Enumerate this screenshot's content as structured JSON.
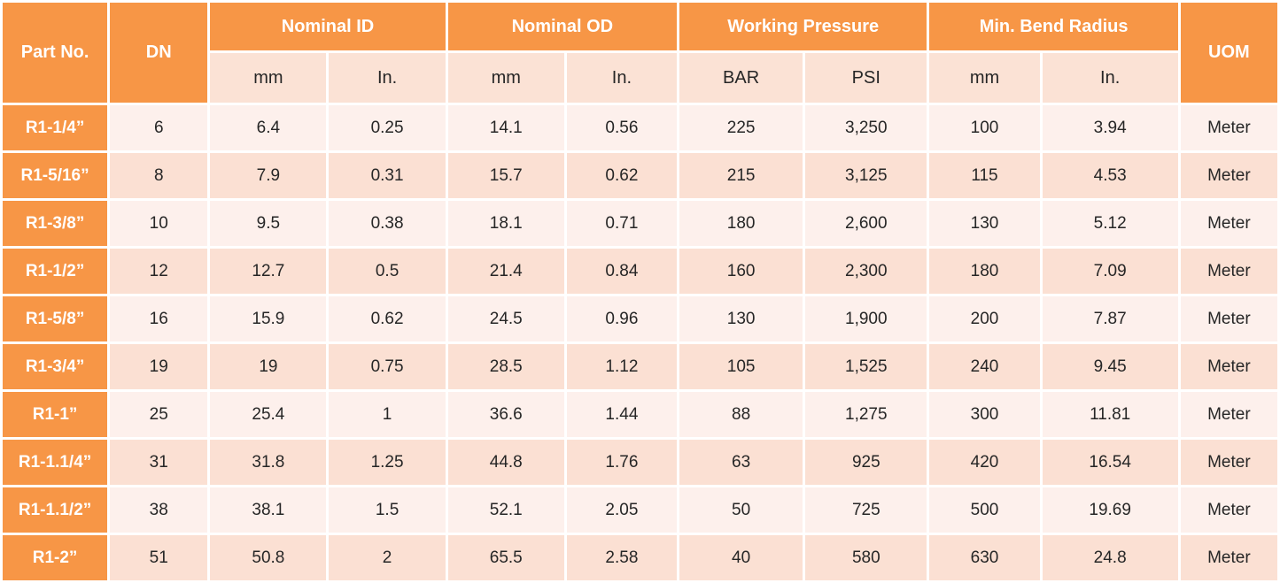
{
  "headers": {
    "part_no": "Part No.",
    "dn": "DN",
    "nominal_id": "Nominal ID",
    "nominal_od": "Nominal OD",
    "working_pressure": "Working Pressure",
    "min_bend_radius": "Min. Bend Radius",
    "uom": "UOM"
  },
  "subheaders": {
    "id_mm": "mm",
    "id_in": "In.",
    "od_mm": "mm",
    "od_in": "In.",
    "wp_bar": "BAR",
    "wp_psi": "PSI",
    "bend_mm": "mm",
    "bend_in": "In."
  },
  "rows": [
    [
      "R1-1/4”",
      "6",
      "6.4",
      "0.25",
      "14.1",
      "0.56",
      "225",
      "3,250",
      "100",
      "3.94",
      "Meter"
    ],
    [
      "R1-5/16”",
      "8",
      "7.9",
      "0.31",
      "15.7",
      "0.62",
      "215",
      "3,125",
      "115",
      "4.53",
      "Meter"
    ],
    [
      "R1-3/8”",
      "10",
      "9.5",
      "0.38",
      "18.1",
      "0.71",
      "180",
      "2,600",
      "130",
      "5.12",
      "Meter"
    ],
    [
      "R1-1/2”",
      "12",
      "12.7",
      "0.5",
      "21.4",
      "0.84",
      "160",
      "2,300",
      "180",
      "7.09",
      "Meter"
    ],
    [
      "R1-5/8”",
      "16",
      "15.9",
      "0.62",
      "24.5",
      "0.96",
      "130",
      "1,900",
      "200",
      "7.87",
      "Meter"
    ],
    [
      "R1-3/4”",
      "19",
      "19",
      "0.75",
      "28.5",
      "1.12",
      "105",
      "1,525",
      "240",
      "9.45",
      "Meter"
    ],
    [
      "R1-1”",
      "25",
      "25.4",
      "1",
      "36.6",
      "1.44",
      "88",
      "1,275",
      "300",
      "11.81",
      "Meter"
    ],
    [
      "R1-1.1/4”",
      "31",
      "31.8",
      "1.25",
      "44.8",
      "1.76",
      "63",
      "925",
      "420",
      "16.54",
      "Meter"
    ],
    [
      "R1-1.1/2”",
      "38",
      "38.1",
      "1.5",
      "52.1",
      "2.05",
      "50",
      "725",
      "500",
      "19.69",
      "Meter"
    ],
    [
      "R1-2”",
      "51",
      "50.8",
      "2",
      "65.5",
      "2.58",
      "40",
      "580",
      "630",
      "24.8",
      "Meter"
    ]
  ],
  "colors": {
    "header_orange": "#f79646",
    "subheader_peach": "#fbe2d5",
    "row_light": "#fdf0ec",
    "row_dark": "#fbe0d3"
  }
}
